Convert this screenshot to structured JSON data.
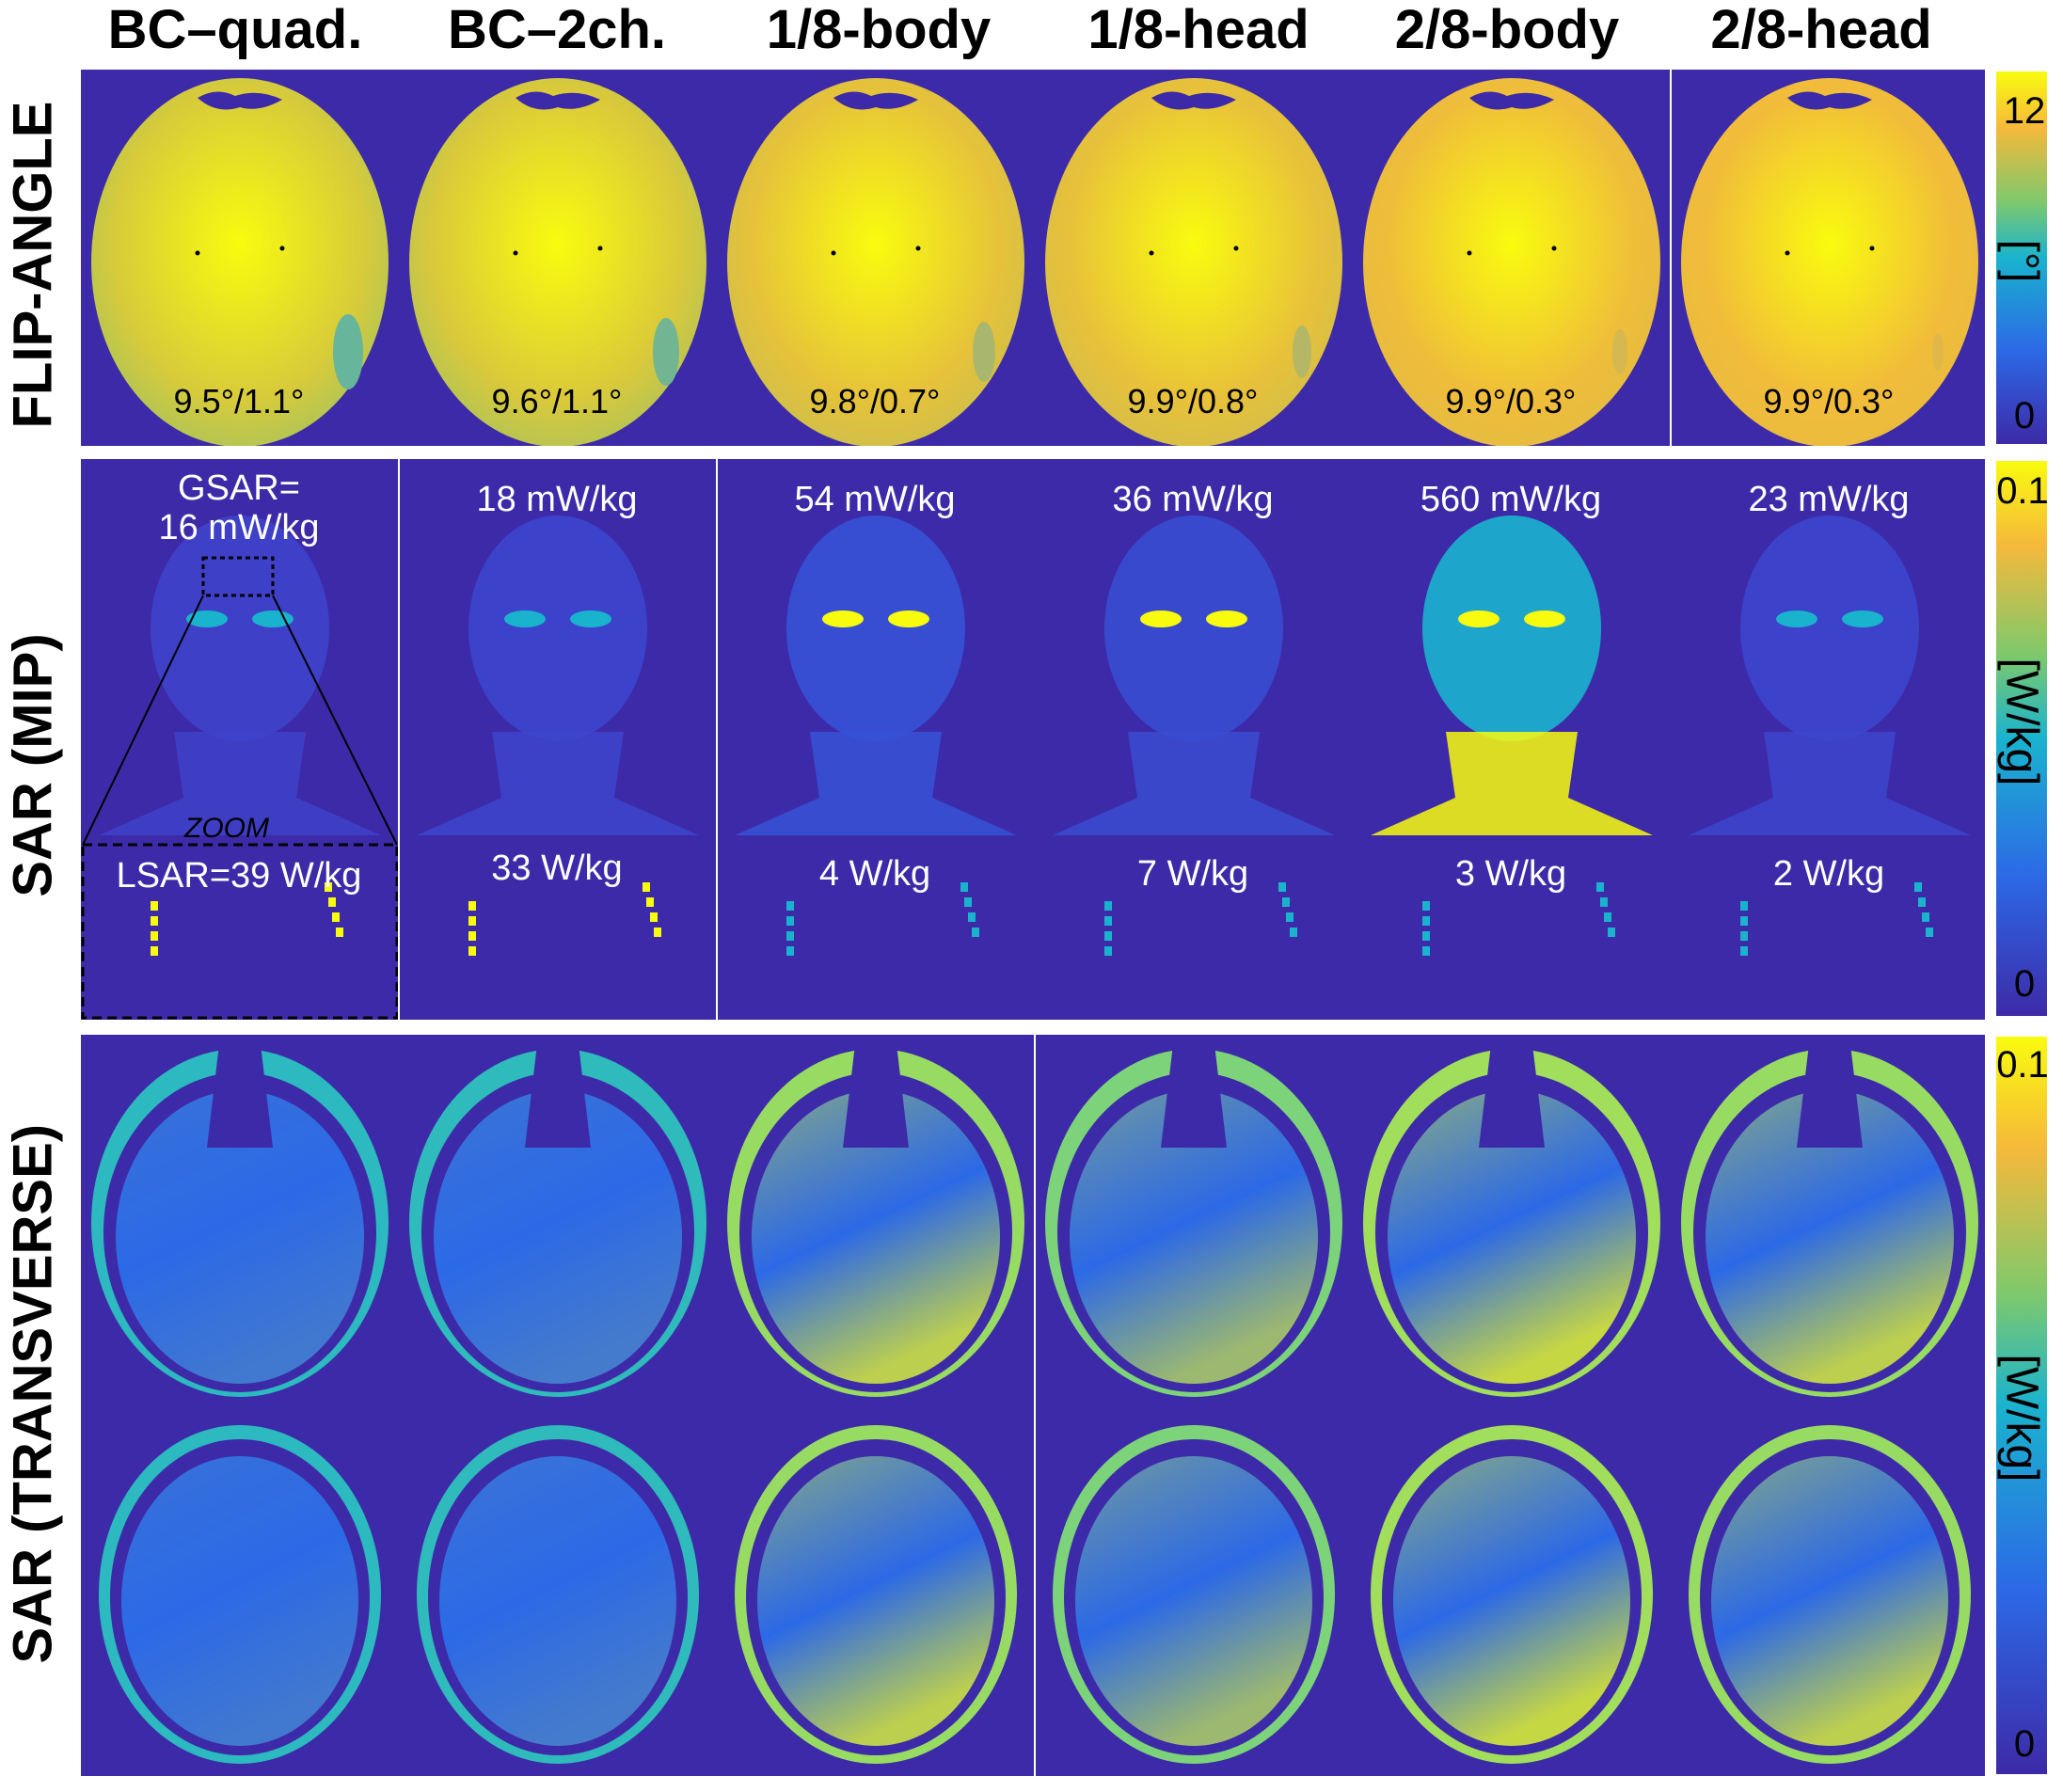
{
  "columns": [
    "BC–quad.",
    "BC–2ch.",
    "1/8-body",
    "1/8-head",
    "2/8-body",
    "2/8-head"
  ],
  "rows": {
    "flip_angle": "FLIP-ANGLE",
    "sar_mip": "SAR (MIP)",
    "sar_transverse": "SAR (TRANSVERSE)"
  },
  "flip_stats": [
    "9.5°/1.1°",
    "9.6°/1.1°",
    "9.8°/0.7°",
    "9.9°/0.8°",
    "9.9°/0.3°",
    "9.9°/0.3°"
  ],
  "gsar": [
    "GSAR=\n16 mW/kg",
    "18 mW/kg",
    "54 mW/kg",
    "36 mW/kg",
    "560 mW/kg",
    "23 mW/kg"
  ],
  "lsar": [
    "LSAR=39 W/kg",
    "33 W/kg",
    "4 W/kg",
    "7 W/kg",
    "3 W/kg",
    "2 W/kg"
  ],
  "zoom_label": "ZOOM",
  "colorbars": [
    {
      "max": "12",
      "min": "0",
      "unit": "[°]"
    },
    {
      "max": "0.1",
      "min": "0",
      "unit": "[W/kg]"
    },
    {
      "max": "0.1",
      "min": "0",
      "unit": "[W/kg]"
    }
  ],
  "colors": {
    "background": "#3d2aa8",
    "yellow": "#f9fb0e",
    "orange": "#f6b93a",
    "cyan": "#1ab3ce",
    "blue": "#2c69e6"
  },
  "flip_intensity": [
    0.35,
    0.4,
    0.65,
    0.7,
    0.85,
    0.9
  ],
  "mip_intensity": [
    0.05,
    0.1,
    0.3,
    0.2,
    0.9,
    0.1
  ],
  "trans_intensity": [
    0.1,
    0.12,
    0.7,
    0.55,
    0.75,
    0.7
  ]
}
